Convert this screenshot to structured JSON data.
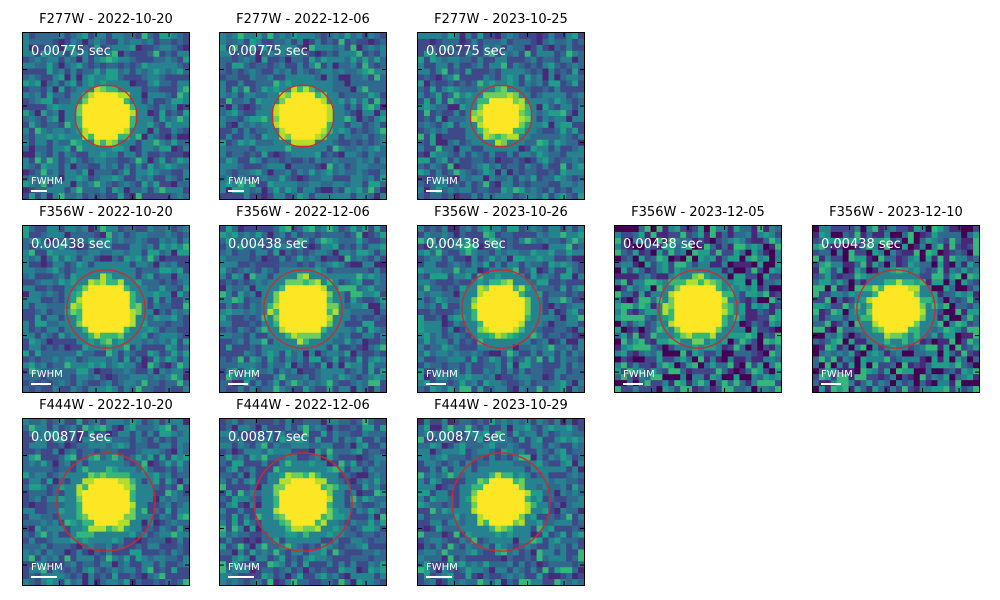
{
  "panels": [
    {
      "id": "p1",
      "title": "F277W - 2022-10-20",
      "exposure": "0.00775 sec",
      "fwhm_label": "FWHM",
      "circle_radius_frac": 0.18,
      "blob_radius_frac": 0.14,
      "noise_seed": 11,
      "style": "sparse"
    },
    {
      "id": "p2",
      "title": "F277W - 2022-12-06",
      "exposure": "0.00775 sec",
      "fwhm_label": "FWHM",
      "circle_radius_frac": 0.18,
      "blob_radius_frac": 0.14,
      "noise_seed": 23,
      "style": "sparse"
    },
    {
      "id": "p3",
      "title": "F277W - 2023-10-25",
      "exposure": "0.00775 sec",
      "fwhm_label": "FWHM",
      "circle_radius_frac": 0.18,
      "blob_radius_frac": 0.12,
      "noise_seed": 37,
      "style": "sparse"
    },
    {
      "id": "p4",
      "title": "F356W - 2022-10-20",
      "exposure": "0.00438 sec",
      "fwhm_label": "FWHM",
      "circle_radius_frac": 0.23,
      "blob_radius_frac": 0.16,
      "noise_seed": 41,
      "style": "sparse"
    },
    {
      "id": "p5",
      "title": "F356W - 2022-12-06",
      "exposure": "0.00438 sec",
      "fwhm_label": "FWHM",
      "circle_radius_frac": 0.23,
      "blob_radius_frac": 0.16,
      "noise_seed": 53,
      "style": "sparse"
    },
    {
      "id": "p6",
      "title": "F356W - 2023-10-26",
      "exposure": "0.00438 sec",
      "fwhm_label": "FWHM",
      "circle_radius_frac": 0.23,
      "blob_radius_frac": 0.14,
      "noise_seed": 67,
      "style": "sparse"
    },
    {
      "id": "p7",
      "title": "F356W - 2023-12-05",
      "exposure": "0.00438 sec",
      "fwhm_label": "FWHM",
      "circle_radius_frac": 0.23,
      "blob_radius_frac": 0.16,
      "noise_seed": 71,
      "style": "dense"
    },
    {
      "id": "p8",
      "title": "F356W - 2023-12-10",
      "exposure": "0.00438 sec",
      "fwhm_label": "FWHM",
      "circle_radius_frac": 0.23,
      "blob_radius_frac": 0.14,
      "noise_seed": 83,
      "style": "dense"
    },
    {
      "id": "p9",
      "title": "F444W - 2022-10-20",
      "exposure": "0.00877 sec",
      "fwhm_label": "FWHM",
      "circle_radius_frac": 0.29,
      "blob_radius_frac": 0.15,
      "noise_seed": 97,
      "style": "sparse"
    },
    {
      "id": "p10",
      "title": "F444W - 2022-12-06",
      "exposure": "0.00877 sec",
      "fwhm_label": "FWHM",
      "circle_radius_frac": 0.29,
      "blob_radius_frac": 0.15,
      "noise_seed": 101,
      "style": "sparse"
    },
    {
      "id": "p11",
      "title": "F444W - 2023-10-29",
      "exposure": "0.00877 sec",
      "fwhm_label": "FWHM",
      "circle_radius_frac": 0.29,
      "blob_radius_frac": 0.14,
      "noise_seed": 113,
      "style": "sparse"
    }
  ],
  "colors": {
    "circle": "#d62728",
    "source": "#fde725",
    "text": "#ffffff",
    "viridis": [
      "#440154",
      "#482878",
      "#3e4989",
      "#31688e",
      "#26828e",
      "#1f9e89",
      "#35b779",
      "#6ece58",
      "#b5de2b",
      "#fde725"
    ]
  }
}
